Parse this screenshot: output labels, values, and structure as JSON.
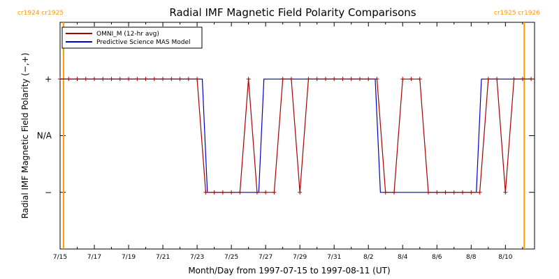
{
  "chart_data": {
    "type": "line",
    "title": "Radial IMF Magnetic Field Polarity Comparisons",
    "xlabel": "Month/Day from 1997-07-15 to 1997-08-11 (UT)",
    "ylabel": "Radial IMF Magnetic Field Polarity (−,+)",
    "x_range_days": [
      0,
      27.7
    ],
    "x_ticks": [
      {
        "day": 0,
        "label": "7/15"
      },
      {
        "day": 2,
        "label": "7/17"
      },
      {
        "day": 4,
        "label": "7/19"
      },
      {
        "day": 6,
        "label": "7/21"
      },
      {
        "day": 8,
        "label": "7/23"
      },
      {
        "day": 10,
        "label": "7/25"
      },
      {
        "day": 12,
        "label": "7/27"
      },
      {
        "day": 14,
        "label": "7/29"
      },
      {
        "day": 16,
        "label": "7/31"
      },
      {
        "day": 18,
        "label": "8/2"
      },
      {
        "day": 20,
        "label": "8/4"
      },
      {
        "day": 22,
        "label": "8/6"
      },
      {
        "day": 24,
        "label": "8/8"
      },
      {
        "day": 26,
        "label": "8/10"
      }
    ],
    "y_range": [
      -2,
      2
    ],
    "y_ticks": [
      {
        "value": 1,
        "label": "+"
      },
      {
        "value": 0,
        "label": "N/A"
      },
      {
        "value": -1,
        "label": "−"
      }
    ],
    "carrington_markers": [
      {
        "day": 0.2,
        "labels": [
          "cr1924",
          "cr1925"
        ],
        "color": "#ff9900"
      },
      {
        "day": 27.1,
        "labels": [
          "cr1925",
          "cr1926"
        ],
        "color": "#ff9900"
      }
    ],
    "series": [
      {
        "name": "OMNI_M (12-hr avg)",
        "color": "#aa0000",
        "markers": true,
        "x": [
          0,
          0.5,
          1,
          1.5,
          2,
          2.5,
          3,
          3.5,
          4,
          4.5,
          5,
          5.5,
          6,
          6.5,
          7,
          7.5,
          8,
          8.5,
          9,
          9.5,
          10,
          10.5,
          11,
          11.5,
          12,
          12.5,
          13,
          13.5,
          14,
          14.5,
          15,
          15.5,
          16,
          16.5,
          17,
          17.5,
          18,
          18.5,
          19,
          19.5,
          20,
          20.5,
          21,
          21.5,
          22,
          22.5,
          23,
          23.5,
          24,
          24.5,
          25,
          25.5,
          26,
          26.5,
          27,
          27.5
        ],
        "values": [
          1,
          1,
          1,
          1,
          1,
          1,
          1,
          1,
          1,
          1,
          1,
          1,
          1,
          1,
          1,
          1,
          1,
          -1,
          -1,
          -1,
          -1,
          -1,
          1,
          -1,
          -1,
          -1,
          1,
          1,
          -1,
          1,
          1,
          1,
          1,
          1,
          1,
          1,
          1,
          1,
          -1,
          -1,
          1,
          1,
          1,
          -1,
          -1,
          -1,
          -1,
          -1,
          -1,
          -1,
          1,
          1,
          -1,
          1,
          1,
          1
        ]
      },
      {
        "name": "Predictive Science MAS Model",
        "color": "#0000cc",
        "markers": false,
        "x": [
          0,
          8.3,
          8.6,
          11.6,
          11.9,
          18.4,
          18.7,
          24.3,
          24.6,
          27.5
        ],
        "values": [
          1,
          1,
          -1,
          -1,
          1,
          1,
          -1,
          -1,
          1,
          1
        ]
      }
    ],
    "legend_position": "top-left"
  }
}
